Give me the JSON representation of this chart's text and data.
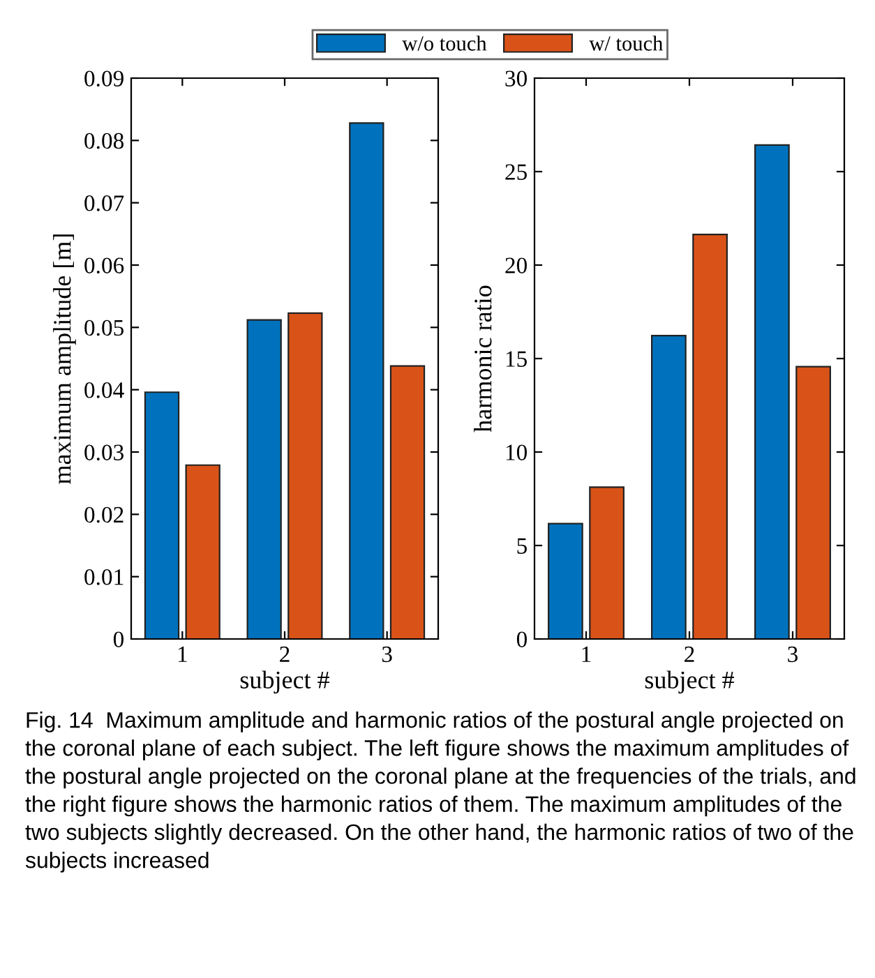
{
  "chart_data": [
    {
      "type": "bar",
      "categories": [
        "1",
        "2",
        "3"
      ],
      "xlabel": "subject #",
      "ylabel": "maximum amplitude [m]",
      "ylim": [
        0,
        0.09
      ],
      "yticks": [
        0,
        0.01,
        0.02,
        0.03,
        0.04,
        0.05,
        0.06,
        0.07,
        0.08,
        0.09
      ],
      "legend": "top",
      "grid": false,
      "series": [
        {
          "name": "w/o touch",
          "color": "#0072bd",
          "values": [
            0.0396,
            0.0512,
            0.0828
          ]
        },
        {
          "name": "w/ touch",
          "color": "#d95319",
          "values": [
            0.0279,
            0.0523,
            0.0438
          ]
        }
      ]
    },
    {
      "type": "bar",
      "categories": [
        "1",
        "2",
        "3"
      ],
      "xlabel": "subject #",
      "ylabel": "harmonic ratio",
      "ylim": [
        0,
        30
      ],
      "yticks": [
        0,
        5,
        10,
        15,
        20,
        25,
        30
      ],
      "grid": false,
      "series": [
        {
          "color": "#0072bd",
          "values": [
            6.17,
            16.23,
            26.42
          ]
        },
        {
          "color": "#d95319",
          "values": [
            8.12,
            21.64,
            14.57
          ]
        }
      ],
      "annotations": [
        "Fig. 14  Maximum amplitude and harmonic ratios of the postural angle projected on the coronal plane of each subject. The left figure shows the maximum amplitudes of the postural angle projected on the coronal plane at the frequencies of the trials, and the right figure shows the harmonic ratios of them. The maximum amplitudes of the two subjects slightly decreased. On the other hand, the harmonic ratios of two of the subjects increased"
      ]
    }
  ]
}
